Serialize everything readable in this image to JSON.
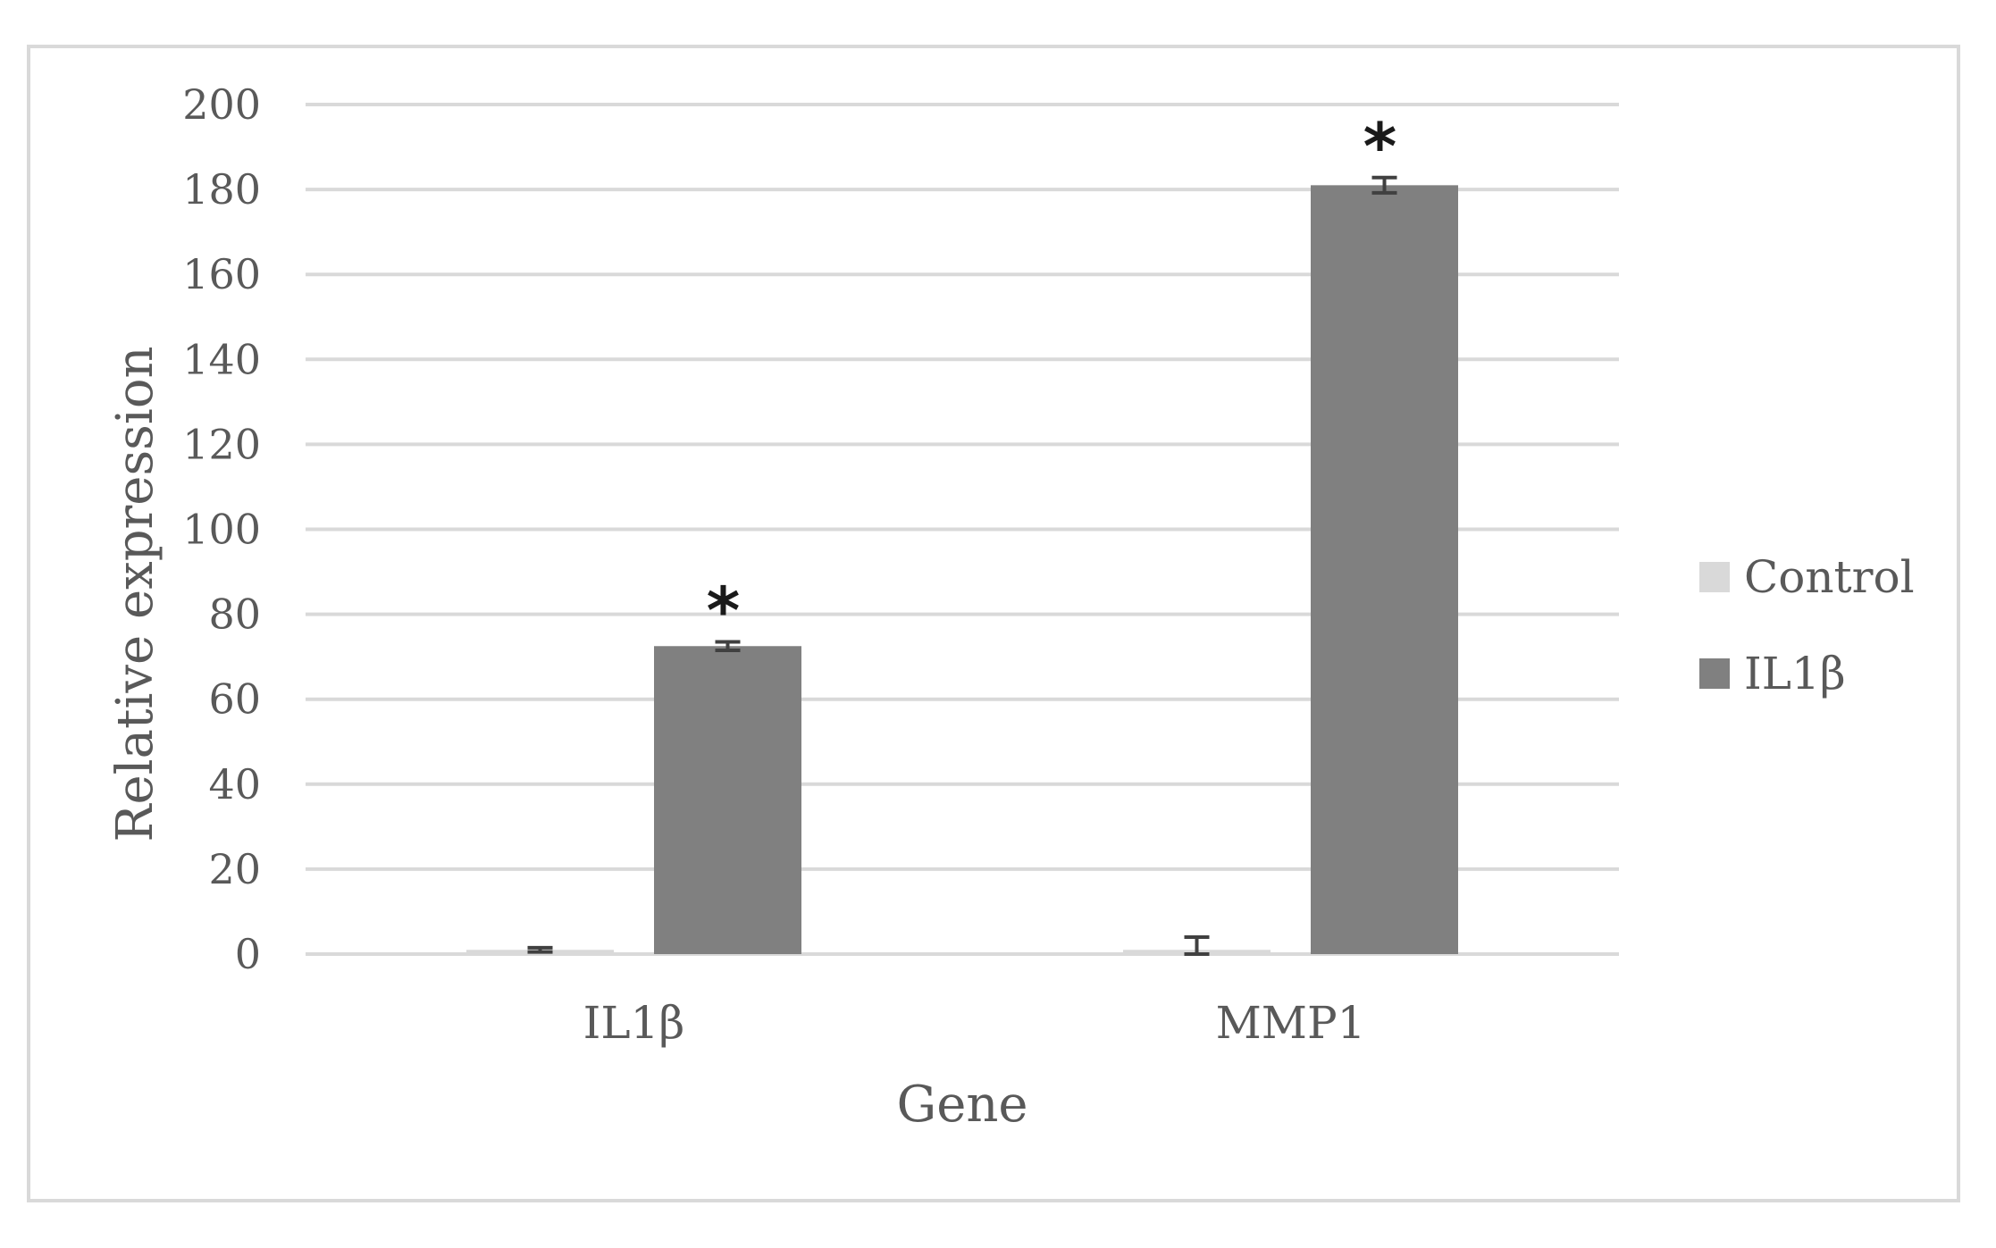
{
  "chart_data": {
    "type": "bar",
    "xlabel": "Gene",
    "ylabel": "Relative expression",
    "categories": [
      "IL1β",
      "MMP1"
    ],
    "series": [
      {
        "name": "Control",
        "values": [
          1,
          1
        ],
        "errors": [
          0.5,
          3
        ],
        "color": "#d9d9d9"
      },
      {
        "name": "IL1β",
        "values": [
          72.5,
          181
        ],
        "errors": [
          1,
          1.8
        ],
        "color": "#808080"
      }
    ],
    "significance": [
      {
        "category": "IL1β",
        "series": "IL1β",
        "label": "*"
      },
      {
        "category": "MMP1",
        "series": "IL1β",
        "label": "*"
      }
    ],
    "ylim": [
      0,
      200
    ],
    "yticks": [
      "0",
      "20",
      "40",
      "60",
      "80",
      "100",
      "120",
      "140",
      "160",
      "180",
      "200"
    ],
    "grid": true,
    "legend_position": "right"
  }
}
